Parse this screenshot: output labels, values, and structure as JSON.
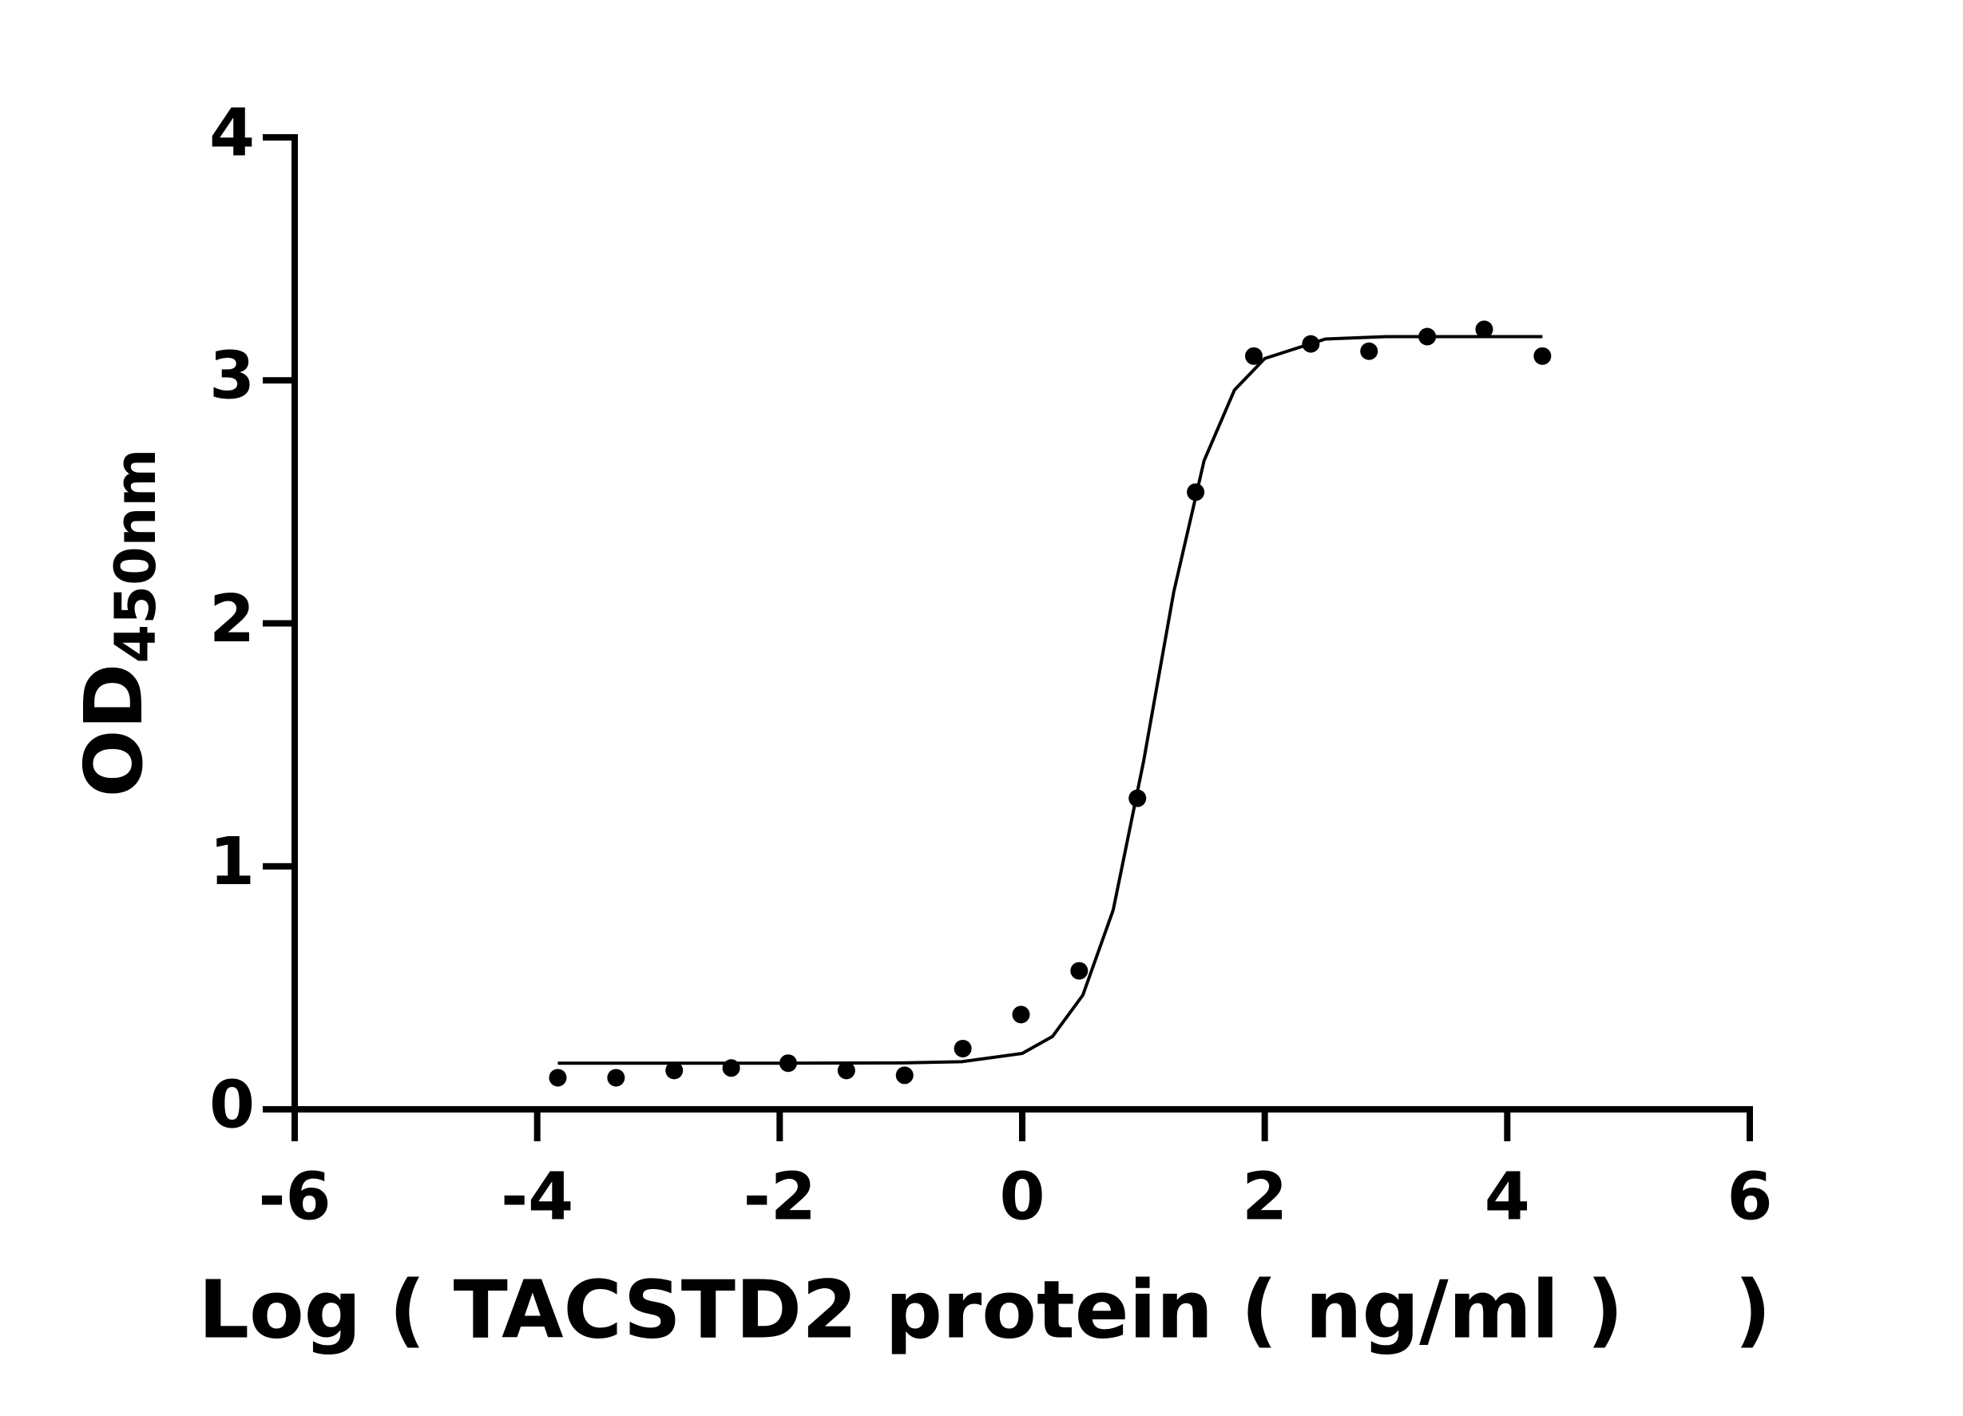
{
  "chart_data": {
    "type": "scatter",
    "xlabel": "Log ( TACSTD2 protein ( ng/ml )    )",
    "ylabel": "OD",
    "ylabel_sub": "450nm",
    "xlim": [
      -6,
      6
    ],
    "xticks": [
      -6,
      -4,
      -2,
      0,
      2,
      4,
      6
    ],
    "ylim": [
      0,
      4
    ],
    "yticks": [
      0,
      1,
      2,
      3,
      4
    ],
    "grid": false,
    "series": [
      {
        "style": "dots",
        "color": "#000000",
        "x": [
          -3.83,
          -3.35,
          -2.87,
          -2.4,
          -1.93,
          -1.45,
          -0.97,
          -0.49,
          -0.01,
          0.47,
          0.95,
          1.43,
          1.91,
          2.38,
          2.86,
          3.34,
          3.81,
          4.29
        ],
        "values": [
          0.13,
          0.13,
          0.16,
          0.17,
          0.19,
          0.16,
          0.14,
          0.25,
          0.39,
          0.57,
          1.28,
          2.54,
          3.1,
          3.15,
          3.12,
          3.18,
          3.21,
          3.1
        ]
      },
      {
        "style": "line",
        "color": "#000000",
        "x": [
          -3.83,
          -3,
          -2,
          -1,
          -0.5,
          0,
          0.25,
          0.5,
          0.75,
          1,
          1.25,
          1.5,
          1.75,
          2,
          2.5,
          3,
          3.5,
          4.29
        ],
        "values": [
          0.19,
          0.19,
          0.19,
          0.191,
          0.196,
          0.23,
          0.3,
          0.47,
          0.82,
          1.43,
          2.13,
          2.67,
          2.96,
          3.09,
          3.17,
          3.18,
          3.18,
          3.18
        ]
      }
    ]
  }
}
